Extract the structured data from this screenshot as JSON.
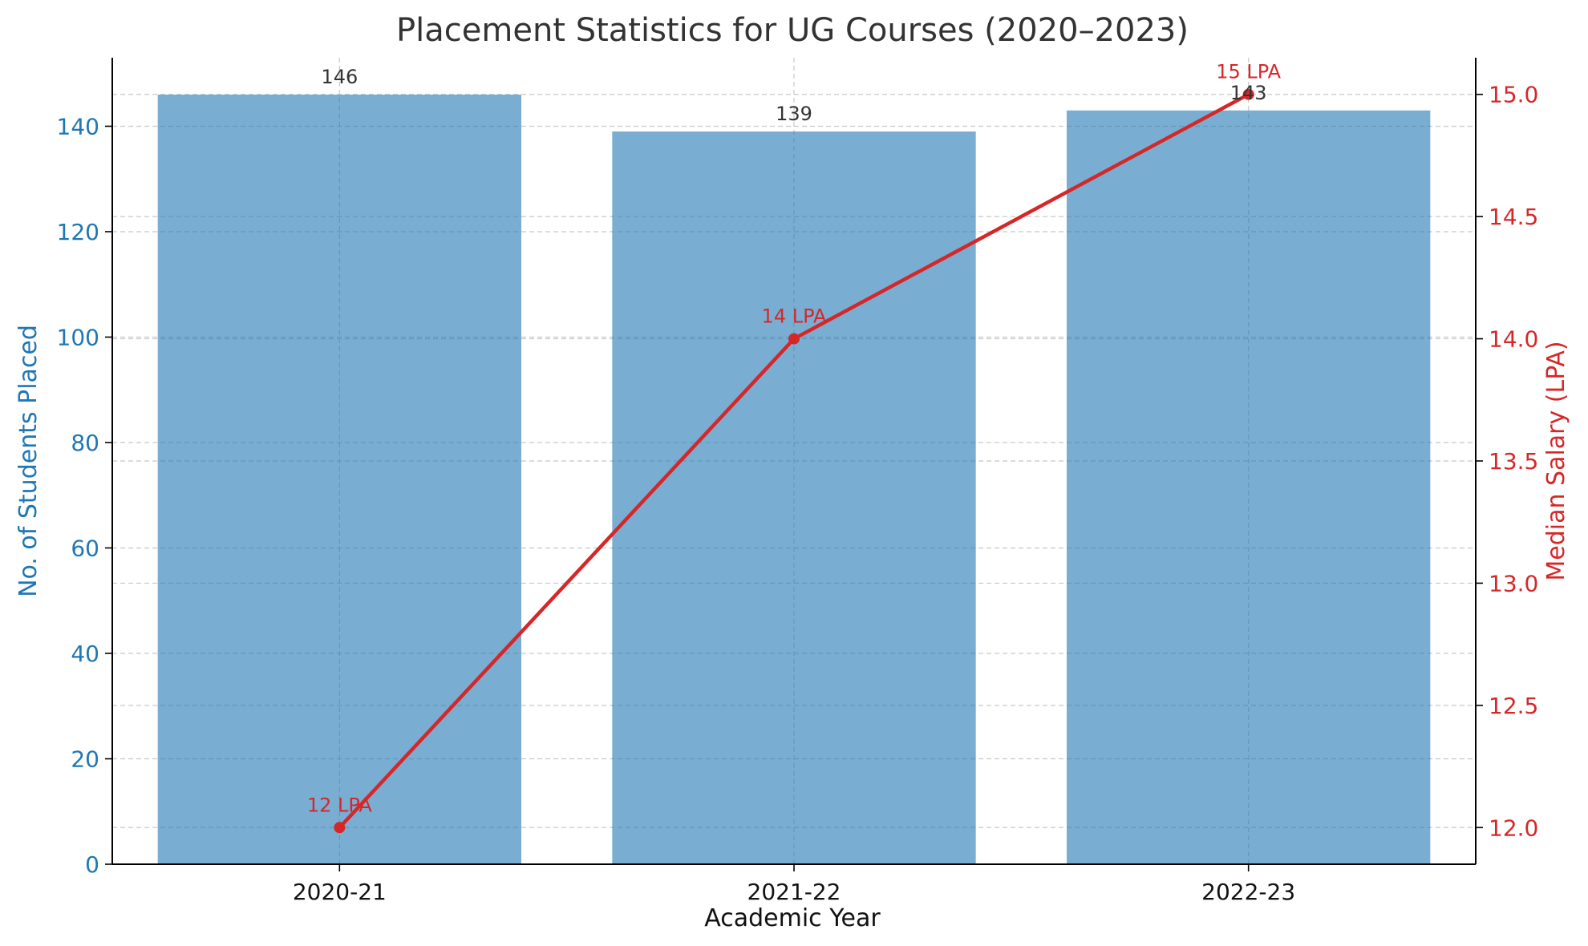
{
  "chart_data": {
    "type": "bar",
    "title": "Placement Statistics for UG Courses (2020–2023)",
    "xlabel": "Academic Year",
    "ylabel": "No. of Students Placed",
    "y2label": "Median Salary (LPA)",
    "categories": [
      "2020-21",
      "2021-22",
      "2022-23"
    ],
    "ylim": [
      0,
      153
    ],
    "y2lim": [
      11.85,
      15.15
    ],
    "yticks": [
      0,
      20,
      40,
      60,
      80,
      100,
      120,
      140
    ],
    "y2ticks": [
      "12.0",
      "12.5",
      "13.0",
      "13.5",
      "14.0",
      "14.5",
      "15.0"
    ],
    "grid": true,
    "bars": {
      "values": [
        146,
        139,
        143
      ],
      "labels": [
        "146",
        "139",
        "143"
      ],
      "color": "#1f77b4"
    },
    "line": {
      "values": [
        12,
        14,
        15
      ],
      "labels": [
        "12 LPA",
        "14 LPA",
        "15 LPA"
      ],
      "color": "#d62728"
    },
    "colors": {
      "left_axis": "#1f77b4",
      "right_axis": "#d62728",
      "text": "#333333"
    }
  }
}
